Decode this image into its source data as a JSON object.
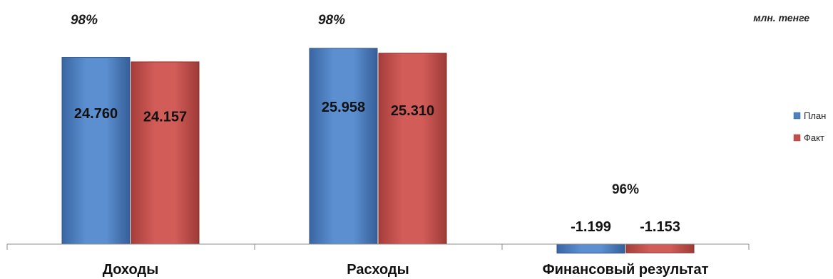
{
  "chart_data": {
    "type": "bar",
    "unit_label": "млн. тенге",
    "categories": [
      "Доходы",
      "Расходы",
      "Финансовый результат"
    ],
    "series": [
      {
        "name": "План",
        "values": [
          24760,
          25958,
          -1199
        ],
        "labels": [
          "24.760",
          "25.958",
          "-1.199"
        ]
      },
      {
        "name": "Факт",
        "values": [
          24157,
          25310,
          -1153
        ],
        "labels": [
          "24.157",
          "25.310",
          "-1.153"
        ]
      }
    ],
    "percentages": [
      "98%",
      "98%",
      "96%"
    ],
    "ylim": [
      -1500,
      27500
    ],
    "grid": false,
    "legend_position": "right",
    "colors": {
      "plan": "#4f81bd",
      "fact": "#c0504d"
    }
  }
}
